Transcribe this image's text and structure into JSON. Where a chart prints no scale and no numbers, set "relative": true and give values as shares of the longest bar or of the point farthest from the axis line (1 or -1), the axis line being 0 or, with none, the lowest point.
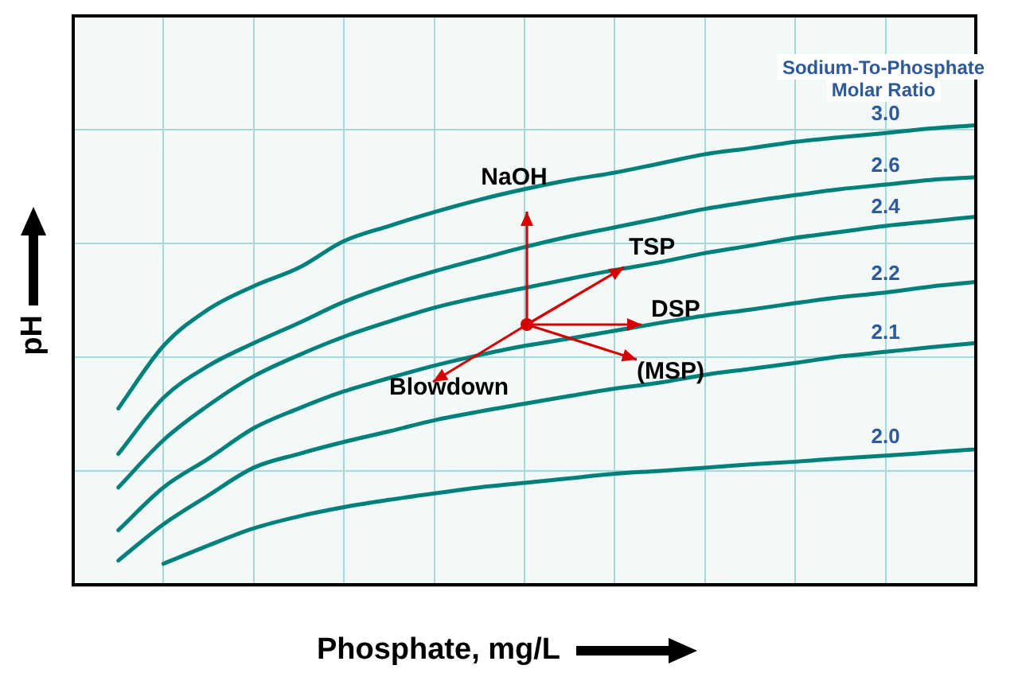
{
  "chart_data": {
    "type": "line",
    "relative": true,
    "xlabel": "Phosphate, mg/L",
    "ylabel": "pH",
    "legend_title": "Sodium-To-Phosphate Molar Ratio",
    "grid": true,
    "legend": false,
    "marker": "none",
    "line_style": "solid",
    "annotations": [
      "NaOH",
      "TSP",
      "DSP",
      "(MSP)",
      "Blowdown"
    ],
    "categories": [
      null,
      null,
      null,
      null,
      null,
      null,
      null,
      null,
      null,
      null,
      null,
      null,
      null,
      null,
      null,
      null,
      null,
      null,
      null,
      null,
      null
    ],
    "series": [
      {
        "name": "3.0",
        "color": "#00807a",
        "values": [
          null,
          0.384,
          0.52,
          0.6,
          0.65,
          0.69,
          0.748,
          0.781,
          0.811,
          0.838,
          0.861,
          0.881,
          0.897,
          0.917,
          0.937,
          0.95,
          0.964,
          0.974,
          0.983,
          0.993,
          1.0
        ]
      },
      {
        "name": "2.6",
        "color": "#00807a",
        "values": [
          null,
          0.285,
          0.407,
          0.477,
          0.526,
          0.57,
          0.616,
          0.652,
          0.682,
          0.709,
          0.735,
          0.758,
          0.778,
          0.798,
          0.818,
          0.834,
          0.848,
          0.861,
          0.871,
          0.881,
          0.887
        ]
      },
      {
        "name": "2.4",
        "color": "#00807a",
        "values": [
          null,
          0.212,
          0.315,
          0.391,
          0.454,
          0.5,
          0.54,
          0.573,
          0.603,
          0.626,
          0.646,
          0.666,
          0.685,
          0.702,
          0.722,
          0.738,
          0.755,
          0.768,
          0.781,
          0.791,
          0.801
        ]
      },
      {
        "name": "2.2",
        "color": "#00807a",
        "values": [
          null,
          0.119,
          0.212,
          0.275,
          0.341,
          0.384,
          0.421,
          0.45,
          0.477,
          0.5,
          0.52,
          0.536,
          0.553,
          0.57,
          0.586,
          0.599,
          0.613,
          0.626,
          0.636,
          0.649,
          0.659
        ]
      },
      {
        "name": "2.1",
        "color": "#00807a",
        "values": [
          null,
          0.053,
          0.132,
          0.195,
          0.255,
          0.285,
          0.311,
          0.334,
          0.358,
          0.377,
          0.394,
          0.411,
          0.427,
          0.44,
          0.457,
          0.47,
          0.483,
          0.497,
          0.507,
          0.517,
          0.526
        ]
      },
      {
        "name": "2.0",
        "color": "#00807a",
        "values": [
          null,
          null,
          0.046,
          0.086,
          0.123,
          0.149,
          0.169,
          0.185,
          0.199,
          0.212,
          0.222,
          0.232,
          0.242,
          0.248,
          0.255,
          0.262,
          0.268,
          0.275,
          0.281,
          0.288,
          0.295
        ]
      }
    ]
  }
}
